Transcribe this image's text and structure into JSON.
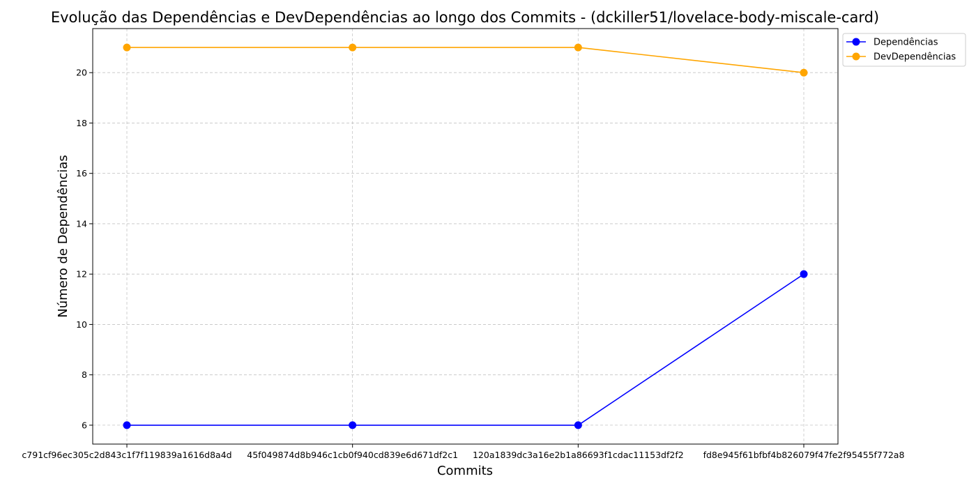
{
  "chart_data": {
    "type": "line",
    "title": "Evolução das Dependências e DevDependências ao longo dos Commits - (dckiller51/lovelace-body-miscale-card)",
    "xlabel": "Commits",
    "ylabel": "Número de Dependências",
    "categories": [
      "c791cf96ec305c2d843c1f7f119839a1616d8a4d",
      "45f049874d8b946c1cb0f940cd839e6d671df2c1",
      "120a1839dc3a16e2b1a86693f1cdac11153df2f2",
      "fd8e945f61bfbf4b826079f47fe2f95455f772a8"
    ],
    "series": [
      {
        "name": "Dependências",
        "values": [
          6,
          6,
          6,
          12
        ],
        "color": "#0000ff"
      },
      {
        "name": "DevDependências",
        "values": [
          21,
          21,
          21,
          20
        ],
        "color": "#ffa500"
      }
    ],
    "yticks": [
      6,
      8,
      10,
      12,
      14,
      16,
      18,
      20
    ],
    "ylim": [
      5.25,
      21.75
    ],
    "grid": true,
    "legend_position": "top-right-outside"
  }
}
